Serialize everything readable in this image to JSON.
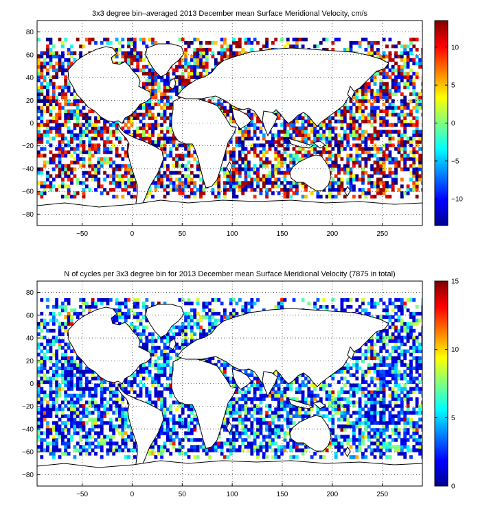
{
  "chart_data": [
    {
      "type": "heatmap",
      "title": "3x3 degree bin–averaged 2013 December mean Surface Meridional Velocity, cm/s",
      "xlabel": "",
      "ylabel": "",
      "xlim": [
        -95,
        290
      ],
      "ylim": [
        -90,
        90
      ],
      "xticks": [
        -50,
        0,
        50,
        100,
        150,
        200,
        250
      ],
      "yticks": [
        -80,
        -60,
        -40,
        -20,
        0,
        20,
        40,
        60,
        80
      ],
      "grid": true,
      "bin_size_deg": 3,
      "colorbar": {
        "colormap": "jet",
        "range": [
          -13.5,
          13.5
        ],
        "ticks": [
          -10,
          -5,
          0,
          5,
          10
        ],
        "colors": [
          "#00008f",
          "#0000ff",
          "#00ffff",
          "#ffff00",
          "#ff0000",
          "#800000"
        ]
      }
    },
    {
      "type": "heatmap",
      "title": "N of cycles per 3x3 degree bin for 2013 December mean Surface Meridional Velocity (7875 in total)",
      "xlabel": "",
      "ylabel": "",
      "xlim": [
        -95,
        290
      ],
      "ylim": [
        -90,
        90
      ],
      "xticks": [
        -50,
        0,
        50,
        100,
        150,
        200,
        250
      ],
      "yticks": [
        -80,
        -60,
        -40,
        -20,
        0,
        20,
        40,
        60,
        80
      ],
      "grid": true,
      "bin_size_deg": 3,
      "total_cycles": 7875,
      "colorbar": {
        "colormap": "jet",
        "range": [
          0,
          15
        ],
        "ticks": [
          0,
          5,
          10,
          15
        ],
        "colors": [
          "#00008f",
          "#0000ff",
          "#00ffff",
          "#ffff00",
          "#ff0000",
          "#800000"
        ]
      }
    }
  ]
}
